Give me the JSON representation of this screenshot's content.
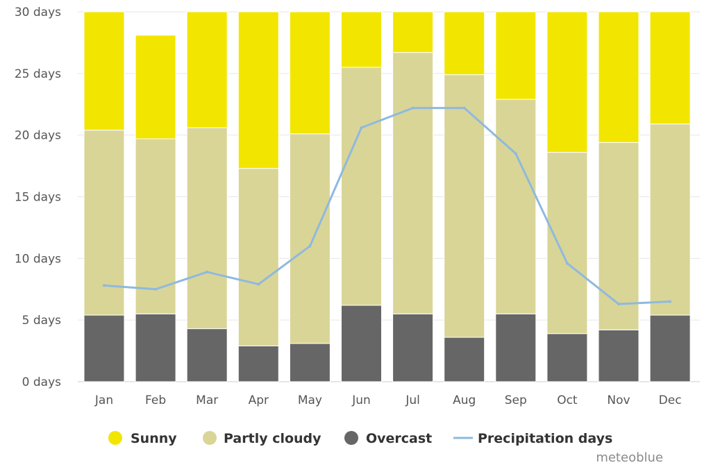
{
  "chart_data": {
    "type": "bar",
    "stacked": true,
    "title": "",
    "xlabel": "",
    "ylabel": "",
    "ylim": [
      0,
      30
    ],
    "y_ticks": [
      0,
      5,
      10,
      15,
      20,
      25,
      30
    ],
    "y_tick_labels": [
      "0 days",
      "5 days",
      "10 days",
      "15 days",
      "20 days",
      "25 days",
      "30 days"
    ],
    "grid": true,
    "legend_position": "bottom",
    "categories": [
      "Jan",
      "Feb",
      "Mar",
      "Apr",
      "May",
      "Jun",
      "Jul",
      "Aug",
      "Sep",
      "Oct",
      "Nov",
      "Dec"
    ],
    "series": [
      {
        "name": "Overcast",
        "kind": "bar",
        "color": "#666666",
        "values": [
          5.4,
          5.5,
          4.3,
          2.9,
          3.1,
          6.2,
          5.5,
          3.6,
          5.5,
          3.9,
          4.2,
          5.4
        ]
      },
      {
        "name": "Partly cloudy",
        "kind": "bar",
        "color": "#d9d597",
        "values": [
          15.0,
          14.2,
          16.3,
          14.4,
          17.0,
          19.3,
          21.2,
          21.3,
          17.4,
          14.7,
          15.2,
          15.5
        ]
      },
      {
        "name": "Sunny",
        "kind": "bar",
        "color": "#f2e600",
        "values": [
          9.6,
          8.4,
          9.4,
          12.7,
          9.9,
          4.5,
          3.3,
          5.1,
          7.1,
          11.4,
          10.6,
          9.1
        ]
      },
      {
        "name": "Precipitation days",
        "kind": "line",
        "color": "#8fb9de",
        "values": [
          7.8,
          7.5,
          8.9,
          7.9,
          11.0,
          20.6,
          22.2,
          22.2,
          18.5,
          9.6,
          6.3,
          6.5
        ]
      }
    ],
    "legend": [
      {
        "label": "Sunny",
        "marker": "circle",
        "color": "#f2e600"
      },
      {
        "label": "Partly cloudy",
        "marker": "circle",
        "color": "#d9d597"
      },
      {
        "label": "Overcast",
        "marker": "circle",
        "color": "#666666"
      },
      {
        "label": "Precipitation days",
        "marker": "line",
        "color": "#8fb9de"
      }
    ],
    "credit": "meteoblue"
  }
}
